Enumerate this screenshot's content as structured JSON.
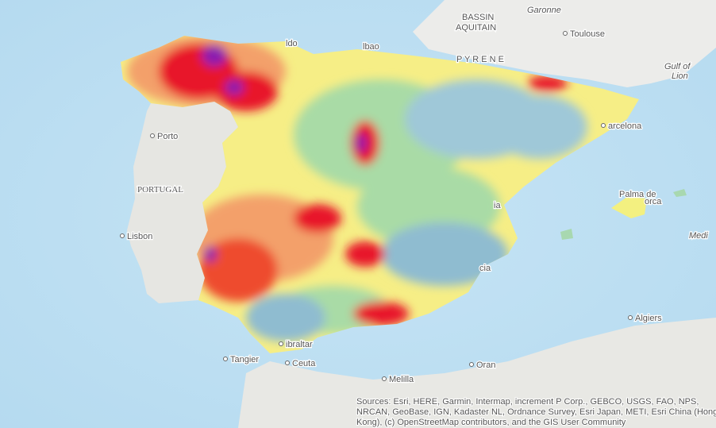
{
  "map": {
    "labels": [
      {
        "text": "BASSIN"
      },
      {
        "text": "AQUITAIN"
      },
      {
        "text": "Garonne"
      },
      {
        "text": "Toulouse"
      },
      {
        "text": "P Y R E N E"
      },
      {
        "text": "Gulf of"
      },
      {
        "text": "Lion"
      },
      {
        "text": "arcelona"
      },
      {
        "text": "Porto"
      },
      {
        "text": "PORTUGAL"
      },
      {
        "text": "Lisbon"
      },
      {
        "text": "Palma de"
      },
      {
        "text": "orca"
      },
      {
        "text": "Medi"
      },
      {
        "text": "Algiers"
      },
      {
        "text": "Tangier"
      },
      {
        "text": "Ceuta"
      },
      {
        "text": "ibraltar"
      },
      {
        "text": "Melilla"
      },
      {
        "text": "Oran"
      },
      {
        "text": "cia"
      },
      {
        "text": "ia"
      },
      {
        "text": "ldo"
      },
      {
        "text": "lbao"
      }
    ],
    "attribution": [
      "Sources: Esri, HERE, Garmin, Intermap, increment P Corp., GEBCO, USGS, FAO, NPS,",
      "NRCAN, GeoBase, IGN, Kadaster NL, Ordnance Survey, Esri Japan, METI, Esri China (Hong",
      "Kong), (c) OpenStreetMap contributors, and the GIS User Community"
    ]
  }
}
